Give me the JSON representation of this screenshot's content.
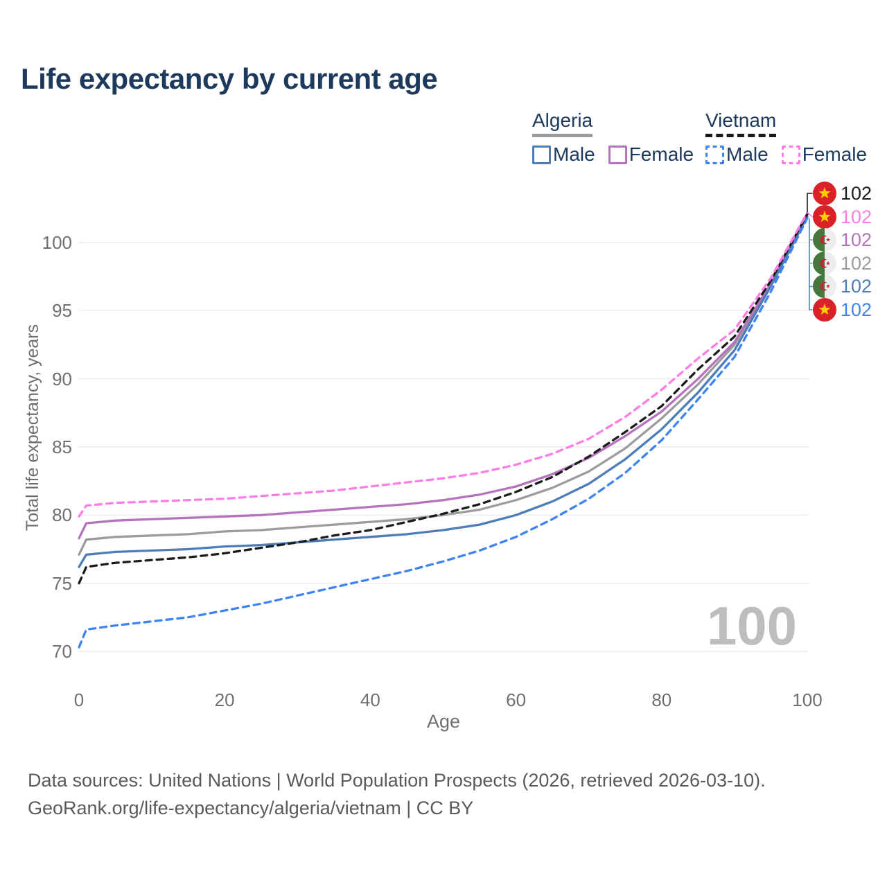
{
  "title": "Life expectancy by current age",
  "legend": {
    "groups": [
      {
        "name": "Algeria",
        "line_style": "solid",
        "underline_color": "#9c9c9c",
        "items": [
          {
            "label": "Male",
            "color": "#4d7db8"
          },
          {
            "label": "Female",
            "color": "#b572bd"
          }
        ]
      },
      {
        "name": "Vietnam",
        "line_style": "dashed",
        "underline_color": "#1b1b1b",
        "items": [
          {
            "label": "Male",
            "color": "#3e83f3"
          },
          {
            "label": "Female",
            "color": "#ff7ce5"
          }
        ]
      }
    ]
  },
  "chart_data": {
    "type": "line",
    "title": "Life expectancy by current age",
    "xlabel": "Age",
    "ylabel": "Total life expectancy, years",
    "xlim": [
      0,
      100
    ],
    "ylim": [
      70,
      102.5
    ],
    "xticks": [
      0,
      20,
      40,
      60,
      80,
      100
    ],
    "yticks": [
      70,
      75,
      80,
      85,
      90,
      95,
      100
    ],
    "grid": "horizontal",
    "legend_position": "top-right",
    "x": [
      0,
      1,
      5,
      10,
      15,
      20,
      25,
      30,
      35,
      40,
      45,
      50,
      55,
      60,
      65,
      70,
      75,
      80,
      85,
      90,
      95,
      100
    ],
    "series": [
      {
        "name": "Algeria Total",
        "country": "Algeria",
        "sex": "both",
        "color": "#9c9c9c",
        "dash": "solid",
        "values": [
          77.1,
          78.2,
          78.4,
          78.5,
          78.6,
          78.8,
          78.9,
          79.1,
          79.3,
          79.5,
          79.7,
          80.0,
          80.4,
          81.1,
          82.0,
          83.2,
          84.9,
          87.1,
          89.6,
          92.5,
          96.9,
          102.0
        ]
      },
      {
        "name": "Algeria Female",
        "country": "Algeria",
        "sex": "female",
        "color": "#b572bd",
        "dash": "solid",
        "values": [
          78.3,
          79.4,
          79.6,
          79.7,
          79.8,
          79.9,
          80.0,
          80.2,
          80.4,
          80.6,
          80.8,
          81.1,
          81.5,
          82.1,
          83.0,
          84.2,
          85.8,
          87.6,
          90.0,
          92.7,
          97.0,
          102.0
        ]
      },
      {
        "name": "Algeria Male",
        "country": "Algeria",
        "sex": "male",
        "color": "#4d7db8",
        "dash": "solid",
        "values": [
          76.2,
          77.1,
          77.3,
          77.4,
          77.5,
          77.7,
          77.8,
          78.0,
          78.2,
          78.4,
          78.6,
          78.9,
          79.3,
          80.0,
          81.0,
          82.3,
          84.1,
          86.3,
          89.0,
          92.1,
          96.8,
          101.9
        ]
      },
      {
        "name": "Vietnam Male",
        "country": "Vietnam",
        "sex": "male",
        "color": "#3e83f3",
        "dash": "dashed",
        "values": [
          70.3,
          71.6,
          71.9,
          72.2,
          72.5,
          73.0,
          73.5,
          74.1,
          74.7,
          75.3,
          75.9,
          76.6,
          77.4,
          78.4,
          79.7,
          81.2,
          83.1,
          85.5,
          88.5,
          91.6,
          96.4,
          101.8
        ]
      },
      {
        "name": "Vietnam Total",
        "country": "Vietnam",
        "sex": "both",
        "color": "#1b1b1b",
        "dash": "dashed",
        "values": [
          75.0,
          76.2,
          76.5,
          76.7,
          76.9,
          77.2,
          77.6,
          78.0,
          78.5,
          78.9,
          79.5,
          80.1,
          80.8,
          81.7,
          82.8,
          84.3,
          86.1,
          88.0,
          90.7,
          93.1,
          97.2,
          102.1
        ]
      },
      {
        "name": "Vietnam Female",
        "country": "Vietnam",
        "sex": "female",
        "color": "#ff7ce5",
        "dash": "dashed",
        "values": [
          79.9,
          80.7,
          80.9,
          81.0,
          81.1,
          81.2,
          81.4,
          81.6,
          81.8,
          82.1,
          82.4,
          82.7,
          83.1,
          83.7,
          84.5,
          85.6,
          87.2,
          89.2,
          91.5,
          93.6,
          97.4,
          102.2
        ]
      }
    ],
    "end_labels": [
      {
        "flag": "vietnam",
        "series": "Vietnam Total",
        "value": "102",
        "color": "#1b1b1b"
      },
      {
        "flag": "vietnam",
        "series": "Vietnam Female",
        "value": "102",
        "color": "#ff7ce5"
      },
      {
        "flag": "algeria",
        "series": "Algeria Female",
        "value": "102",
        "color": "#b572bd"
      },
      {
        "flag": "algeria",
        "series": "Algeria Total",
        "value": "102",
        "color": "#9c9c9c"
      },
      {
        "flag": "algeria",
        "series": "Algeria Male",
        "value": "102",
        "color": "#4d7db8"
      },
      {
        "flag": "vietnam",
        "series": "Vietnam Male",
        "value": "102",
        "color": "#3e83f3"
      }
    ],
    "age_counter": "100"
  },
  "colors": {
    "title_text": "#1d3a5c",
    "tick_text": "#6f6f6f",
    "gridline": "#ececec",
    "watermark": "#bdbdbd",
    "footer_text": "#5a5a5a",
    "vietnam_flag_red": "#da2127",
    "vietnam_flag_star": "#ffcd00",
    "algeria_flag_green": "#44793c",
    "algeria_flag_white": "#ededed",
    "algeria_flag_red": "#cc1f36"
  },
  "footer": {
    "line1": "Data sources: United Nations | World Population Prospects (2026, retrieved 2026-03-10).",
    "line2": "GeoRank.org/life-expectancy/algeria/vietnam | CC BY"
  }
}
